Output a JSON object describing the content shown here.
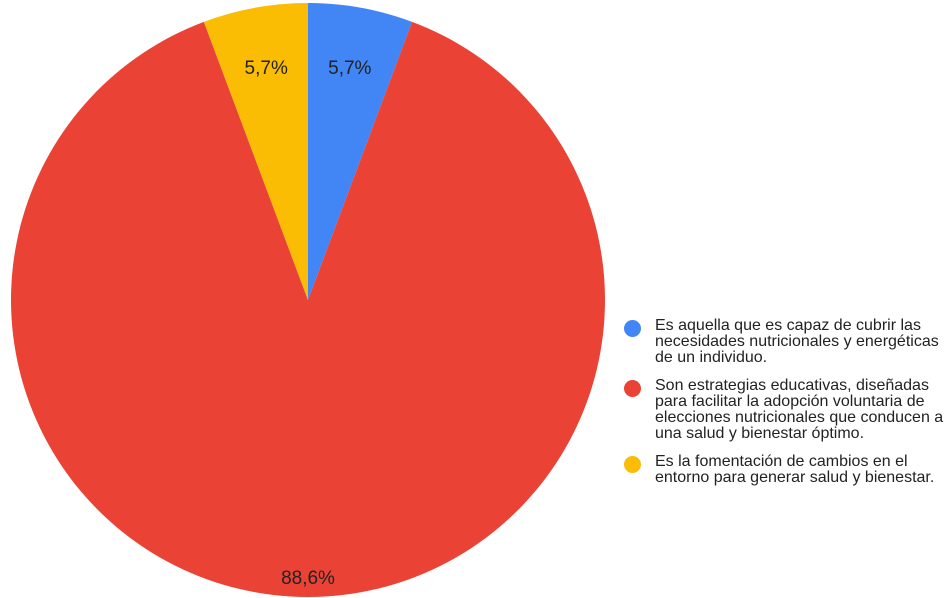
{
  "chart_data": {
    "type": "pie",
    "slices": [
      {
        "label": "Es aquella que es capaz de cubrir las necesidades nutricionales y energéticas de un individuo.",
        "value": 5.7,
        "display": "5,7%",
        "color": "#4285F4"
      },
      {
        "label": "Son estrategias educativas, diseñadas para facilitar la adopción voluntaria de elecciones nutricionales que conducen a una salud y bienestar óptimo.",
        "value": 88.6,
        "display": "88,6%",
        "color": "#EA4335"
      },
      {
        "label": "Es la fomentación de cambios en el entorno para generar salud y bienestar.",
        "value": 5.7,
        "display": "5,7%",
        "color": "#FBBC04"
      }
    ],
    "legend_position": "right"
  }
}
